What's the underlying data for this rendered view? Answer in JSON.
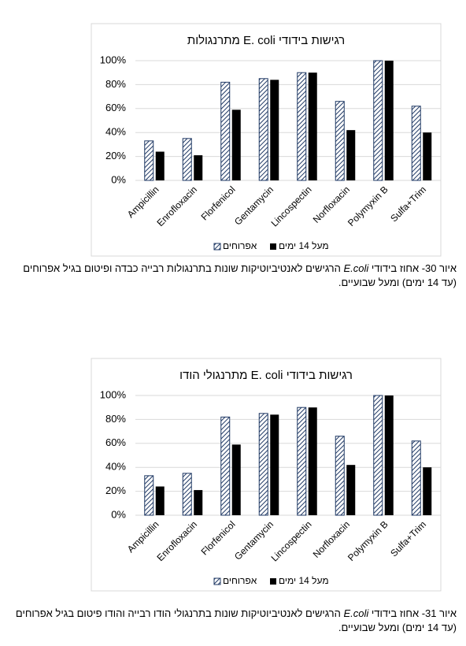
{
  "chart_data": [
    {
      "type": "bar",
      "title": "רגישות בידודי  E. coli מתרנגולות",
      "categories": [
        "Ampicillin",
        "Enrofloxacin",
        "Florfenicol",
        "Gentamycin",
        "Lincospectin",
        "Norfloxacin",
        "Polymyxin B",
        "Sulfa+Trim"
      ],
      "series": [
        {
          "name": "אפרוחים",
          "color": "#1f3864",
          "pattern": "hatch",
          "values": [
            33,
            35,
            82,
            85,
            90,
            66,
            100,
            62
          ]
        },
        {
          "name": "מעל 14 ימים",
          "color": "#000000",
          "values": [
            24,
            21,
            59,
            84,
            90,
            42,
            100,
            40
          ]
        }
      ],
      "ylim": [
        0,
        100
      ],
      "yticks": [
        {
          "value": 0,
          "label": "0%"
        },
        {
          "value": 20,
          "label": "20%"
        },
        {
          "value": 40,
          "label": "40%"
        },
        {
          "value": 60,
          "label": "60%"
        },
        {
          "value": 80,
          "label": "80%"
        },
        {
          "value": 100,
          "label": "100%"
        }
      ],
      "grid": true,
      "legend": "bottom"
    },
    {
      "type": "bar",
      "title": "רגישות בידודי  E. coli מתרנגולי הודו",
      "categories": [
        "Ampicillin",
        "Enrofloxacin",
        "Florfenicol",
        "Gentamycin",
        "Lincospectin",
        "Norfloxacin",
        "Polymyxin B",
        "Sulfa+Trim"
      ],
      "series": [
        {
          "name": "אפרוחים",
          "color": "#1f3864",
          "pattern": "hatch",
          "values": [
            33,
            35,
            82,
            85,
            90,
            66,
            100,
            62
          ]
        },
        {
          "name": "מעל 14 ימים",
          "color": "#000000",
          "values": [
            24,
            21,
            59,
            84,
            90,
            42,
            100,
            40
          ]
        }
      ],
      "ylim": [
        0,
        100
      ],
      "yticks": [
        {
          "value": 0,
          "label": "0%"
        },
        {
          "value": 20,
          "label": "20%"
        },
        {
          "value": 40,
          "label": "40%"
        },
        {
          "value": 60,
          "label": "60%"
        },
        {
          "value": 80,
          "label": "80%"
        },
        {
          "value": 100,
          "label": "100%"
        }
      ],
      "grid": true,
      "legend": "bottom"
    }
  ],
  "captions": [
    {
      "before": "איור 30- אחוז בידודי ",
      "italic": "E.coli",
      "after": " הרגישים לאנטיביוטיקות שונות בתרנגולות רבייה כבדה ופיטום בגיל אפרוחים (עד 14 ימים) ומעל שבועיים."
    },
    {
      "before": "איור 31- אחוז בידודי ",
      "italic": "E.coli",
      "after": " הרגישים לאנטיביוטיקות שונות בתרנגולי הודו רבייה והודו פיטום בגיל אפרוחים (עד 14 ימים) ומעל שבועיים."
    }
  ]
}
